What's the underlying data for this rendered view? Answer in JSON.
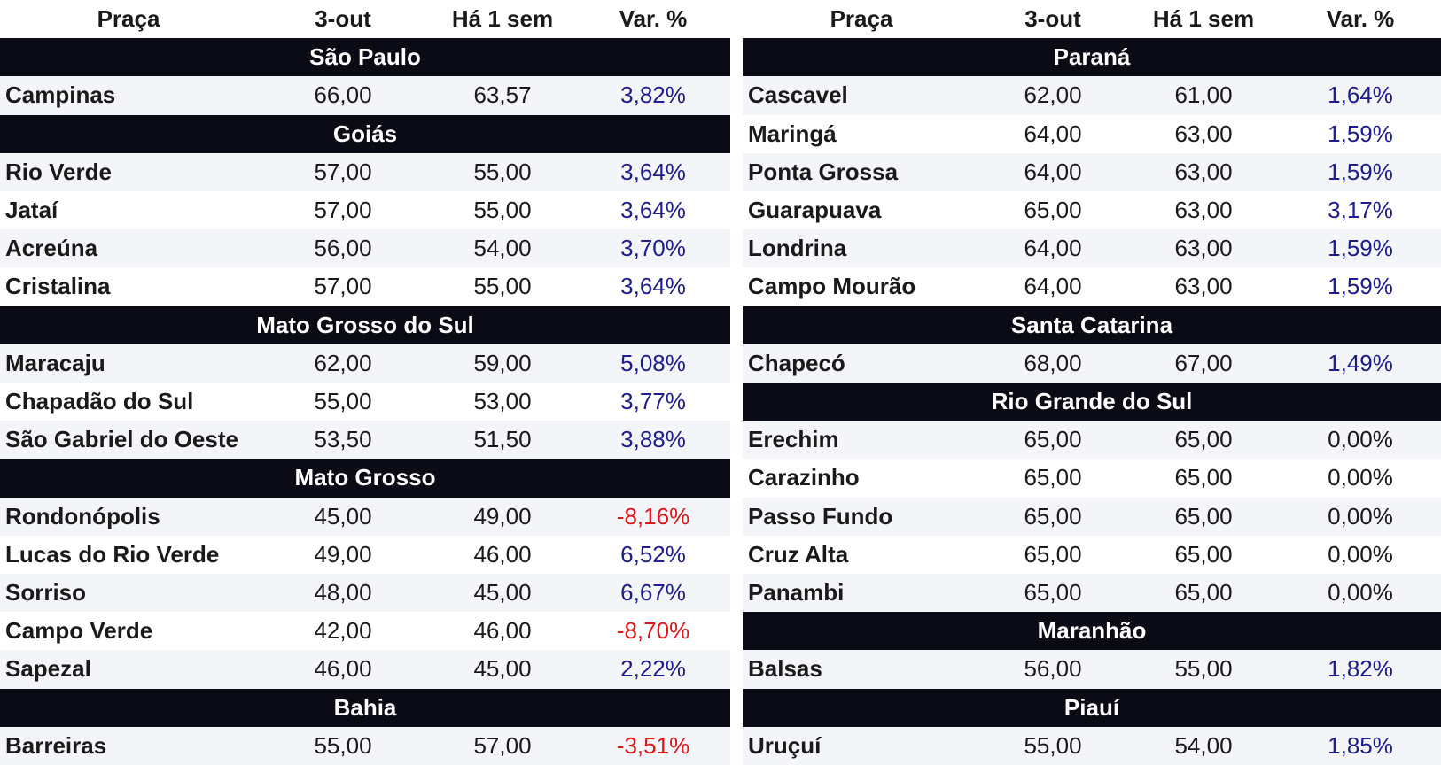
{
  "tables": [
    {
      "header": [
        "Praça",
        "3-out",
        "Há 1 sem",
        "Var. %"
      ],
      "groups": [
        {
          "name": "São Paulo",
          "rows": [
            [
              "Campinas",
              "66,00",
              "63,57",
              "3,82%"
            ]
          ]
        },
        {
          "name": "Goiás",
          "rows": [
            [
              "Rio Verde",
              "57,00",
              "55,00",
              "3,64%"
            ],
            [
              "Jataí",
              "57,00",
              "55,00",
              "3,64%"
            ],
            [
              "Acreúna",
              "56,00",
              "54,00",
              "3,70%"
            ],
            [
              "Cristalina",
              "57,00",
              "55,00",
              "3,64%"
            ]
          ]
        },
        {
          "name": "Mato Grosso do Sul",
          "rows": [
            [
              "Maracaju",
              "62,00",
              "59,00",
              "5,08%"
            ],
            [
              "Chapadão do Sul",
              "55,00",
              "53,00",
              "3,77%"
            ],
            [
              "São Gabriel do Oeste",
              "53,50",
              "51,50",
              "3,88%"
            ]
          ]
        },
        {
          "name": "Mato Grosso",
          "rows": [
            [
              "Rondonópolis",
              "45,00",
              "49,00",
              "-8,16%"
            ],
            [
              "Lucas do Rio Verde",
              "49,00",
              "46,00",
              "6,52%"
            ],
            [
              "Sorriso",
              "48,00",
              "45,00",
              "6,67%"
            ],
            [
              "Campo Verde",
              "42,00",
              "46,00",
              "-8,70%"
            ],
            [
              "Sapezal",
              "46,00",
              "45,00",
              "2,22%"
            ]
          ]
        },
        {
          "name": "Bahia",
          "rows": [
            [
              "Barreiras",
              "55,00",
              "57,00",
              "-3,51%"
            ]
          ]
        }
      ]
    },
    {
      "header": [
        "Praça",
        "3-out",
        "Há 1 sem",
        "Var. %"
      ],
      "groups": [
        {
          "name": "Paraná",
          "rows": [
            [
              "Cascavel",
              "62,00",
              "61,00",
              "1,64%"
            ],
            [
              "Maringá",
              "64,00",
              "63,00",
              "1,59%"
            ],
            [
              "Ponta Grossa",
              "64,00",
              "63,00",
              "1,59%"
            ],
            [
              "Guarapuava",
              "65,00",
              "63,00",
              "3,17%"
            ],
            [
              "Londrina",
              "64,00",
              "63,00",
              "1,59%"
            ],
            [
              "Campo Mourão",
              "64,00",
              "63,00",
              "1,59%"
            ]
          ]
        },
        {
          "name": "Santa Catarina",
          "rows": [
            [
              "Chapecó",
              "68,00",
              "67,00",
              "1,49%"
            ]
          ]
        },
        {
          "name": "Rio Grande do Sul",
          "rows": [
            [
              "Erechim",
              "65,00",
              "65,00",
              "0,00%"
            ],
            [
              "Carazinho",
              "65,00",
              "65,00",
              "0,00%"
            ],
            [
              "Passo Fundo",
              "65,00",
              "65,00",
              "0,00%"
            ],
            [
              "Cruz Alta",
              "65,00",
              "65,00",
              "0,00%"
            ],
            [
              "Panambi",
              "65,00",
              "65,00",
              "0,00%"
            ]
          ]
        },
        {
          "name": "Maranhão",
          "rows": [
            [
              "Balsas",
              "56,00",
              "55,00",
              "1,82%"
            ]
          ]
        },
        {
          "name": "Piauí",
          "rows": [
            [
              "Uruçuí",
              "55,00",
              "54,00",
              "1,85%"
            ]
          ]
        }
      ]
    }
  ]
}
